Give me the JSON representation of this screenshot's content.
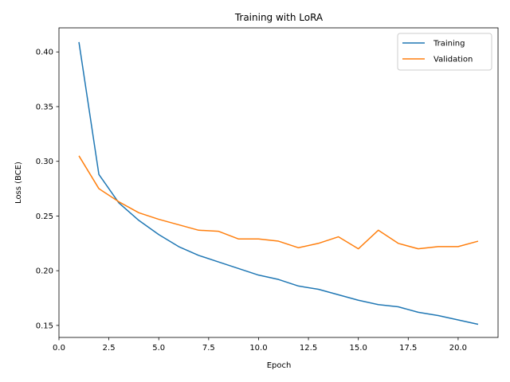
{
  "chart_data": {
    "type": "line",
    "title": "Training with LoRA",
    "xlabel": "Epoch",
    "ylabel": "Loss (BCE)",
    "xlim": [
      0,
      22
    ],
    "ylim": [
      0.139,
      0.422
    ],
    "xticks": [
      0.0,
      2.5,
      5.0,
      7.5,
      10.0,
      12.5,
      15.0,
      17.5,
      20.0
    ],
    "xtick_labels": [
      "0.0",
      "2.5",
      "5.0",
      "7.5",
      "10.0",
      "12.5",
      "15.0",
      "17.5",
      "20.0"
    ],
    "yticks": [
      0.15,
      0.2,
      0.25,
      0.3,
      0.35,
      0.4
    ],
    "ytick_labels": [
      "0.15",
      "0.20",
      "0.25",
      "0.30",
      "0.35",
      "0.40"
    ],
    "grid": false,
    "legend_position": "top-right",
    "x": [
      1,
      2,
      3,
      4,
      5,
      6,
      7,
      8,
      9,
      10,
      11,
      12,
      13,
      14,
      15,
      16,
      17,
      18,
      19,
      20,
      21
    ],
    "series": [
      {
        "name": "Training",
        "color": "#1f77b4",
        "values": [
          0.409,
          0.288,
          0.262,
          0.246,
          0.233,
          0.222,
          0.214,
          0.208,
          0.202,
          0.196,
          0.192,
          0.186,
          0.183,
          0.178,
          0.173,
          0.169,
          0.167,
          0.162,
          0.159,
          0.155,
          0.151
        ]
      },
      {
        "name": "Validation",
        "color": "#ff7f0e",
        "values": [
          0.305,
          0.275,
          0.263,
          0.253,
          0.247,
          0.242,
          0.237,
          0.236,
          0.229,
          0.229,
          0.227,
          0.221,
          0.225,
          0.231,
          0.22,
          0.237,
          0.225,
          0.22,
          0.222,
          0.222,
          0.227
        ]
      }
    ]
  }
}
